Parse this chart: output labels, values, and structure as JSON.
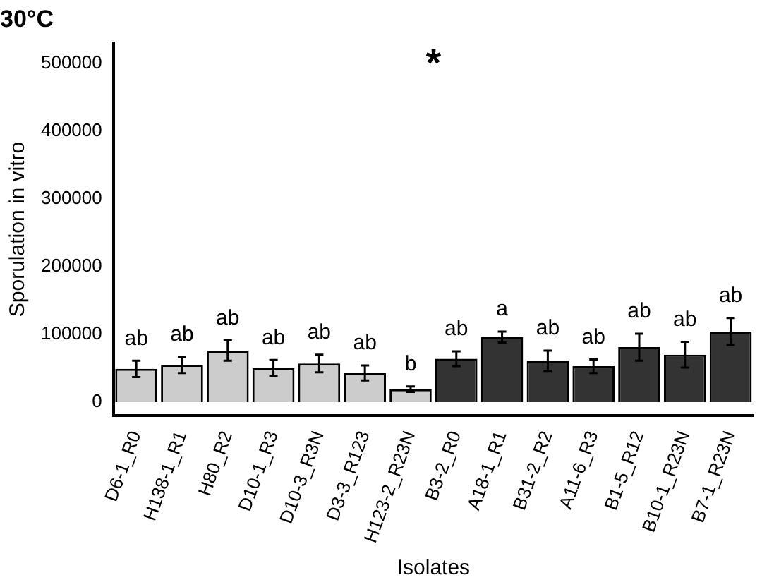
{
  "chart_data": {
    "type": "bar",
    "title": "30°C",
    "xlabel": "Isolates",
    "ylabel": "Sporulation in vitro",
    "categories": [
      "D6-1_R0",
      "H138-1_R1",
      "H80_R2",
      "D10-1_R3",
      "D10-3_R3N",
      "D3-3_R123",
      "H123-2_R23N",
      "B3-2_R0",
      "A18-1_R1",
      "B31-2_R2",
      "A11-6_R3",
      "B1-5_R12",
      "B10-1_R23N",
      "B7-1_R23N"
    ],
    "values": [
      49000,
      55000,
      76000,
      50000,
      57000,
      43000,
      19000,
      64000,
      96000,
      61000,
      53000,
      81000,
      70000,
      104000
    ],
    "errors": [
      12000,
      12000,
      15000,
      12000,
      13000,
      11000,
      4000,
      11000,
      8000,
      15000,
      10000,
      20000,
      19000,
      20000
    ],
    "colors": [
      "#cccccc",
      "#cccccc",
      "#cccccc",
      "#cccccc",
      "#cccccc",
      "#cccccc",
      "#cccccc",
      "#333333",
      "#333333",
      "#333333",
      "#333333",
      "#333333",
      "#333333",
      "#333333"
    ],
    "ylim": [
      -20000,
      530000
    ],
    "yticks": [
      0,
      100000,
      200000,
      300000,
      400000,
      500000
    ],
    "grid": false,
    "legend": false,
    "annotations": [
      "*",
      {
        "text": "ab",
        "x": "D6-1_R0",
        "y": 49000
      },
      {
        "text": "ab",
        "x": "H138-1_R1",
        "y": 55000
      },
      {
        "text": "ab",
        "x": "H80_R2",
        "y": 76000
      },
      {
        "text": "ab",
        "x": "D10-1_R3",
        "y": 50000
      },
      {
        "text": "ab",
        "x": "D10-3_R3N",
        "y": 57000
      },
      {
        "text": "ab",
        "x": "D3-3_R123",
        "y": 43000
      },
      {
        "text": "b",
        "x": "H123-2_R23N",
        "y": 19000
      },
      {
        "text": "ab",
        "x": "B3-2_R0",
        "y": 64000
      },
      {
        "text": "a",
        "x": "A18-1_R1",
        "y": 96000
      },
      {
        "text": "ab",
        "x": "B31-2_R2",
        "y": 61000
      },
      {
        "text": "ab",
        "x": "A11-6_R3",
        "y": 53000
      },
      {
        "text": "ab",
        "x": "B1-5_R12",
        "y": 81000
      },
      {
        "text": "ab",
        "x": "B10-1_R23N",
        "y": 70000
      },
      {
        "text": "ab",
        "x": "B7-1_R23N",
        "y": 104000
      }
    ]
  }
}
